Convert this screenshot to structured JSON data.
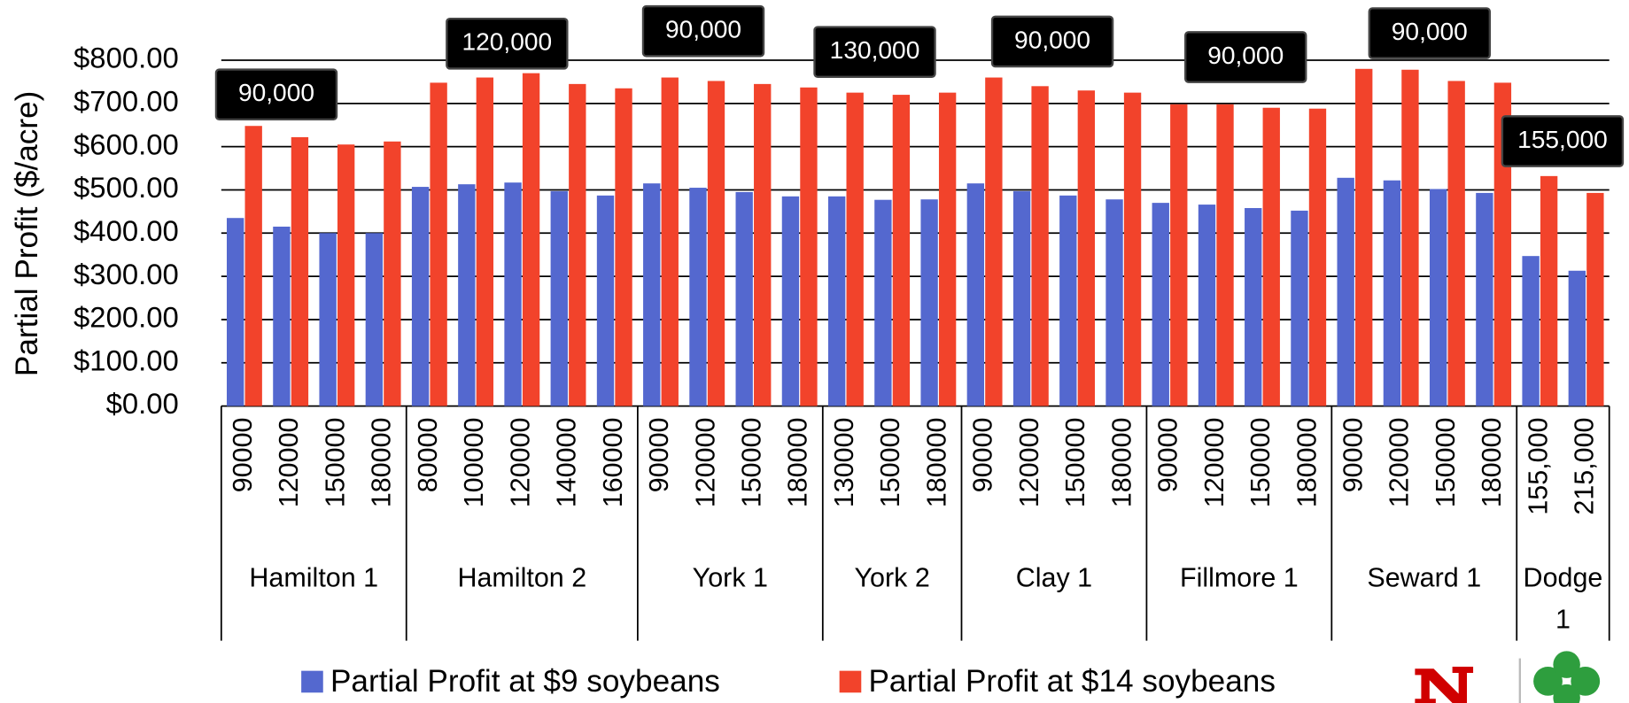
{
  "chart_data": {
    "type": "bar",
    "y_label": "Partial Profit ($/acre)",
    "groups": [
      {
        "name": "Hamilton 1",
        "categories": [
          "90000",
          "120000",
          "150000",
          "180000"
        ]
      },
      {
        "name": "Hamilton 2",
        "categories": [
          "80000",
          "100000",
          "120000",
          "140000",
          "160000"
        ]
      },
      {
        "name": "York 1",
        "categories": [
          "90000",
          "120000",
          "150000",
          "180000"
        ]
      },
      {
        "name": "York 2",
        "categories": [
          "130000",
          "150000",
          "180000"
        ]
      },
      {
        "name": "Clay 1",
        "categories": [
          "90000",
          "120000",
          "150000",
          "180000"
        ]
      },
      {
        "name": "Fillmore 1",
        "categories": [
          "90000",
          "120000",
          "150000",
          "180000"
        ]
      },
      {
        "name": "Seward 1",
        "categories": [
          "90000",
          "120000",
          "150000",
          "180000"
        ]
      },
      {
        "name": "Dodge 1",
        "categories": [
          "155,000",
          "215,000"
        ]
      }
    ],
    "series": [
      {
        "name": "Partial Profit at $9 soybeans",
        "color": "#5468cf",
        "values": [
          435,
          415,
          400,
          400,
          507,
          513,
          517,
          497,
          487,
          515,
          505,
          495,
          485,
          485,
          477,
          478,
          515,
          497,
          487,
          478,
          470,
          466,
          458,
          452,
          528,
          522,
          502,
          493,
          347,
          313
        ]
      },
      {
        "name": "Partial Profit at $14 soybeans",
        "color": "#f2432b",
        "values": [
          648,
          622,
          605,
          612,
          748,
          760,
          770,
          745,
          735,
          760,
          752,
          745,
          737,
          725,
          720,
          725,
          760,
          740,
          730,
          725,
          698,
          698,
          690,
          688,
          780,
          778,
          752,
          748,
          532,
          493
        ]
      }
    ],
    "annotations": [
      "90,000",
      "120,000",
      "90,000",
      "130,000",
      "90,000",
      "90,000",
      "90,000",
      "155,000"
    ],
    "ylim": [
      0,
      800
    ],
    "yticks": [
      {
        "value": 0,
        "label": "$0.00"
      },
      {
        "value": 100,
        "label": "$100.00"
      },
      {
        "value": 200,
        "label": "$200.00"
      },
      {
        "value": 300,
        "label": "$300.00"
      },
      {
        "value": 400,
        "label": "$400.00"
      },
      {
        "value": 500,
        "label": "$500.00"
      },
      {
        "value": 600,
        "label": "$600.00"
      },
      {
        "value": 700,
        "label": "$700.00"
      },
      {
        "value": 800,
        "label": "$800.00"
      }
    ],
    "grid": true,
    "legend": "bottom"
  }
}
